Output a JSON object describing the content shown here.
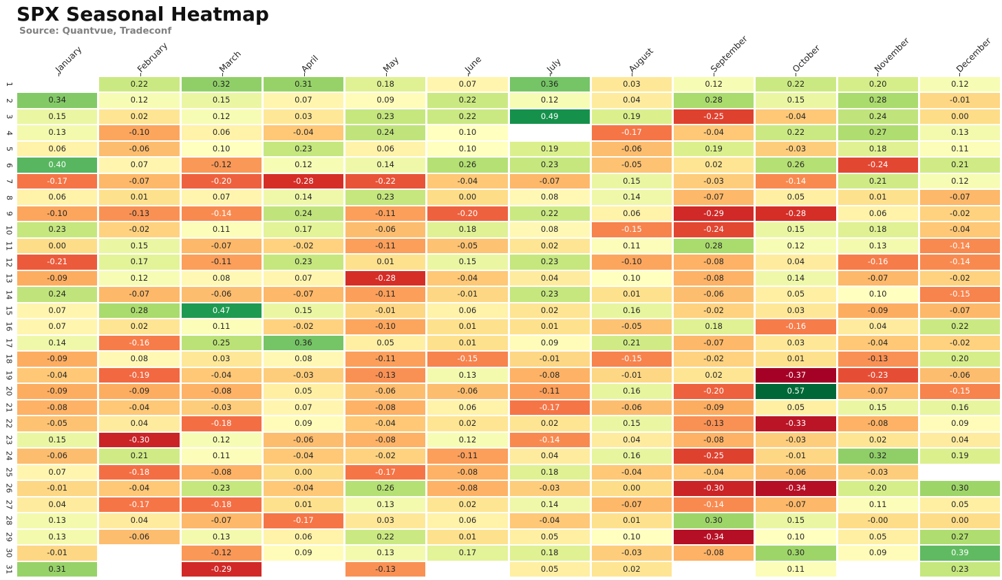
{
  "header": {
    "title": "SPX Seasonal Heatmap",
    "source": "Source: Quantvue, Tradeconf"
  },
  "chart_data": {
    "type": "heatmap",
    "title": "SPX Seasonal Heatmap",
    "subtitle": "Source: Quantvue, Tradeconf",
    "columns": [
      "January",
      "February",
      "March",
      "April",
      "May",
      "June",
      "July",
      "August",
      "September",
      "October",
      "November",
      "December"
    ],
    "row_labels": [
      "1",
      "2",
      "3",
      "4",
      "5",
      "6",
      "7",
      "8",
      "9",
      "10",
      "11",
      "12",
      "13",
      "14",
      "15",
      "16",
      "17",
      "18",
      "19",
      "20",
      "21",
      "22",
      "23",
      "24",
      "25",
      "26",
      "27",
      "28",
      "29",
      "30",
      "31"
    ],
    "values": [
      [
        null,
        "0.22",
        "0.32",
        "0.31",
        "0.18",
        "0.07",
        "0.36",
        "0.03",
        "0.12",
        "0.22",
        "0.20",
        "0.12"
      ],
      [
        "0.34",
        "0.12",
        "0.15",
        "0.07",
        "0.09",
        "0.22",
        "0.12",
        "0.04",
        "0.28",
        "0.15",
        "0.28",
        "-0.01"
      ],
      [
        "0.15",
        "0.02",
        "0.12",
        "0.03",
        "0.23",
        "0.22",
        "0.49",
        "0.19",
        "-0.25",
        "-0.04",
        "0.24",
        "0.00"
      ],
      [
        "0.13",
        "-0.10",
        "0.06",
        "-0.04",
        "0.24",
        "0.10",
        null,
        "-0.17",
        "-0.04",
        "0.22",
        "0.27",
        "0.13"
      ],
      [
        "0.06",
        "-0.06",
        "0.10",
        "0.23",
        "0.06",
        "0.10",
        "0.19",
        "-0.06",
        "0.19",
        "-0.03",
        "0.18",
        "0.11"
      ],
      [
        "0.40",
        "0.07",
        "-0.12",
        "0.12",
        "0.14",
        "0.26",
        "0.23",
        "-0.05",
        "0.02",
        "0.26",
        "-0.24",
        "0.21"
      ],
      [
        "-0.17",
        "-0.07",
        "-0.20",
        "-0.28",
        "-0.22",
        "-0.04",
        "-0.07",
        "0.15",
        "-0.03",
        "-0.14",
        "0.21",
        "0.12"
      ],
      [
        "0.06",
        "0.01",
        "0.07",
        "0.14",
        "0.23",
        "0.00",
        "0.08",
        "0.14",
        "-0.07",
        "0.05",
        "0.01",
        "-0.07"
      ],
      [
        "-0.10",
        "-0.13",
        "-0.14",
        "0.24",
        "-0.11",
        "-0.20",
        "0.22",
        "0.06",
        "-0.29",
        "-0.28",
        "0.06",
        "-0.02"
      ],
      [
        "0.23",
        "-0.02",
        "0.11",
        "0.17",
        "-0.06",
        "0.18",
        "0.08",
        "-0.15",
        "-0.24",
        "0.15",
        "0.18",
        "-0.04"
      ],
      [
        "0.00",
        "0.15",
        "-0.07",
        "-0.02",
        "-0.11",
        "-0.05",
        "0.02",
        "0.11",
        "0.28",
        "0.12",
        "0.13",
        "-0.14"
      ],
      [
        "-0.21",
        "0.17",
        "-0.11",
        "0.23",
        "0.01",
        "0.15",
        "0.23",
        "-0.10",
        "-0.08",
        "0.04",
        "-0.16",
        "-0.14"
      ],
      [
        "-0.09",
        "0.12",
        "0.08",
        "0.07",
        "-0.28",
        "-0.04",
        "0.04",
        "0.10",
        "-0.08",
        "0.14",
        "-0.07",
        "-0.02"
      ],
      [
        "0.24",
        "-0.07",
        "-0.06",
        "-0.07",
        "-0.11",
        "-0.01",
        "0.23",
        "0.01",
        "-0.06",
        "0.05",
        "0.10",
        "-0.15"
      ],
      [
        "0.07",
        "0.28",
        "0.47",
        "0.15",
        "-0.01",
        "0.06",
        "0.02",
        "0.16",
        "-0.02",
        "0.03",
        "-0.09",
        "-0.07"
      ],
      [
        "0.07",
        "0.02",
        "0.11",
        "-0.02",
        "-0.10",
        "0.01",
        "0.01",
        "-0.05",
        "0.18",
        "-0.16",
        "0.04",
        "0.22"
      ],
      [
        "0.14",
        "-0.16",
        "0.25",
        "0.36",
        "0.05",
        "0.01",
        "0.09",
        "0.21",
        "-0.07",
        "0.03",
        "-0.04",
        "-0.02"
      ],
      [
        "-0.09",
        "0.08",
        "0.03",
        "0.08",
        "-0.11",
        "-0.15",
        "-0.01",
        "-0.15",
        "-0.02",
        "0.01",
        "-0.13",
        "0.20"
      ],
      [
        "-0.04",
        "-0.19",
        "-0.04",
        "-0.03",
        "-0.13",
        "0.13",
        "-0.08",
        "-0.01",
        "0.02",
        "-0.37",
        "-0.23",
        "-0.06"
      ],
      [
        "-0.09",
        "-0.09",
        "-0.08",
        "0.05",
        "-0.06",
        "-0.06",
        "-0.11",
        "0.16",
        "-0.20",
        "0.57",
        "-0.07",
        "-0.15"
      ],
      [
        "-0.08",
        "-0.04",
        "-0.03",
        "0.07",
        "-0.08",
        "0.06",
        "-0.17",
        "-0.06",
        "-0.09",
        "0.05",
        "0.15",
        "0.16"
      ],
      [
        "-0.05",
        "0.04",
        "-0.18",
        "0.09",
        "-0.04",
        "0.02",
        "0.02",
        "0.15",
        "-0.13",
        "-0.33",
        "-0.08",
        "0.09"
      ],
      [
        "0.15",
        "-0.30",
        "0.12",
        "-0.06",
        "-0.08",
        "0.12",
        "-0.14",
        "0.04",
        "-0.08",
        "-0.03",
        "0.02",
        "0.04"
      ],
      [
        "-0.06",
        "0.21",
        "0.11",
        "-0.04",
        "-0.02",
        "-0.11",
        "0.04",
        "0.16",
        "-0.25",
        "-0.01",
        "0.32",
        "0.19"
      ],
      [
        "0.07",
        "-0.18",
        "-0.08",
        "0.00",
        "-0.17",
        "-0.08",
        "0.18",
        "-0.04",
        "-0.04",
        "-0.06",
        "-0.03",
        null
      ],
      [
        "-0.01",
        "-0.04",
        "0.23",
        "-0.04",
        "0.26",
        "-0.08",
        "-0.03",
        "0.00",
        "-0.30",
        "-0.34",
        "0.20",
        "0.30"
      ],
      [
        "0.04",
        "-0.17",
        "-0.18",
        "0.01",
        "0.13",
        "0.02",
        "0.14",
        "-0.07",
        "-0.14",
        "-0.07",
        "0.11",
        "0.05"
      ],
      [
        "0.13",
        "0.04",
        "-0.07",
        "-0.17",
        "0.03",
        "0.06",
        "-0.04",
        "0.01",
        "0.30",
        "0.15",
        "-0.00",
        "0.00"
      ],
      [
        "0.13",
        "-0.06",
        "0.13",
        "0.06",
        "0.22",
        "0.01",
        "0.05",
        "0.10",
        "-0.34",
        "0.10",
        "0.05",
        "0.27"
      ],
      [
        "-0.01",
        null,
        "-0.12",
        "0.09",
        "0.13",
        "0.17",
        "0.18",
        "-0.03",
        "-0.08",
        "0.30",
        "0.09",
        "0.39"
      ],
      [
        "0.31",
        null,
        "-0.29",
        null,
        "-0.13",
        null,
        "0.05",
        "0.02",
        null,
        "0.11",
        null,
        "0.23"
      ]
    ],
    "vmin": -0.37,
    "vmax": 0.57,
    "colormap": "RdYlGn",
    "colorscale": [
      "#a50026",
      "#d73027",
      "#f46d43",
      "#fdae61",
      "#fee08b",
      "#ffffbf",
      "#d9ef8b",
      "#a6d96a",
      "#66bd63",
      "#1a9850",
      "#006837"
    ],
    "annot_dark_color": "#262626",
    "annot_light_color": "#ffffff",
    "empty_color": "#ffffff",
    "grid": false,
    "legend_position": "none",
    "xaxis_label_rotation": -45,
    "yaxis_label_rotation": 90
  }
}
